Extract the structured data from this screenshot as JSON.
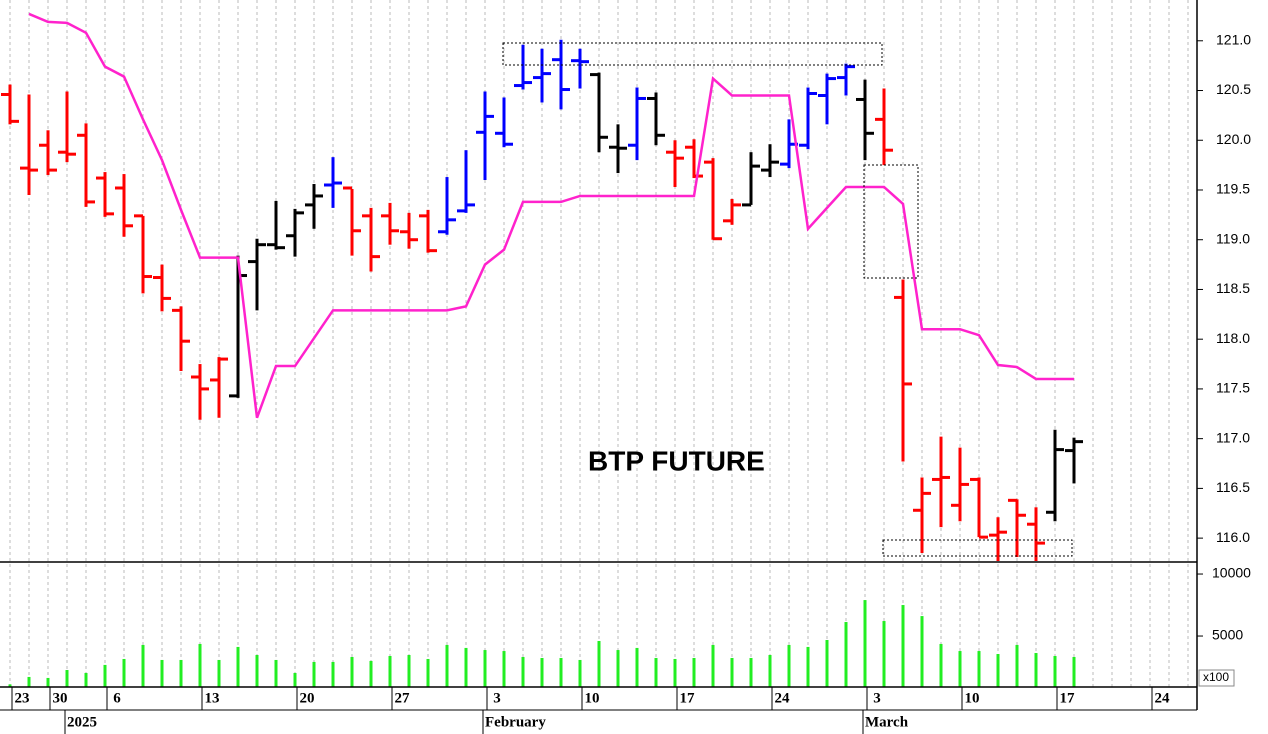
{
  "chart_data": [
    {
      "type": "ohlc",
      "annotation": "BTP FUTURE",
      "ylim": [
        115.76,
        121.41
      ],
      "yticks": [
        {
          "value": 116,
          "label": "116.0"
        },
        116.5,
        {
          "value": 117,
          "label": "117.0"
        },
        117.5,
        {
          "value": 118,
          "label": "118.0"
        },
        118.5,
        {
          "value": 119,
          "label": "119.0"
        },
        119.5,
        {
          "value": 120,
          "label": "120.0"
        },
        120.5,
        {
          "value": 121,
          "label": "121.0"
        }
      ],
      "open": [
        120.46,
        119.72,
        119.95,
        119.88,
        120.05,
        119.62,
        119.52,
        119.24,
        118.62,
        118.29,
        117.62,
        117.59,
        117.43,
        118.78,
        118.95,
        119.04,
        119.35,
        119.55,
        119.52,
        119.24,
        119.24,
        119.08,
        119.24,
        119.08,
        119.29,
        120.08,
        120.07,
        120.55,
        120.63,
        120.81,
        120.8,
        120.66,
        119.93,
        119.95,
        120.42,
        119.88,
        119.93,
        119.78,
        119.19,
        119.35,
        119.7,
        119.76,
        119.95,
        120.45,
        120.63,
        120.41,
        120.21,
        118.42,
        116.28,
        116.59,
        116.33,
        116.59,
        116.03,
        116.38,
        116.14,
        116.26,
        116.88,
        null,
        null,
        null,
        null,
        null,
        null
      ],
      "high": [
        120.56,
        120.46,
        120.1,
        120.49,
        120.17,
        119.68,
        119.66,
        119.24,
        118.75,
        118.33,
        117.75,
        117.82,
        118.84,
        119.01,
        119.39,
        119.31,
        119.56,
        119.83,
        119.51,
        119.32,
        119.37,
        119.27,
        119.3,
        119.63,
        119.9,
        120.49,
        120.43,
        120.96,
        120.92,
        121.01,
        120.92,
        120.68,
        120.16,
        120.53,
        120.48,
        120.0,
        120.01,
        119.82,
        119.41,
        119.88,
        119.96,
        120.21,
        120.53,
        120.67,
        120.77,
        120.61,
        120.52,
        118.6,
        116.61,
        117.02,
        116.91,
        116.61,
        116.21,
        116.39,
        116.31,
        117.09,
        117.01,
        null,
        null,
        null,
        null,
        null,
        null
      ],
      "low": [
        120.16,
        119.45,
        119.65,
        119.78,
        119.33,
        119.23,
        119.03,
        118.46,
        118.28,
        117.68,
        117.19,
        117.21,
        117.41,
        118.29,
        118.9,
        118.83,
        119.11,
        119.32,
        118.84,
        118.68,
        118.95,
        118.91,
        118.87,
        119.05,
        119.27,
        119.6,
        119.93,
        120.51,
        120.38,
        120.31,
        120.52,
        119.88,
        119.67,
        119.8,
        119.95,
        119.53,
        119.62,
        119.0,
        119.15,
        119.35,
        119.63,
        119.72,
        119.91,
        120.16,
        120.45,
        119.8,
        119.75,
        116.77,
        115.85,
        116.11,
        116.17,
        116.01,
        115.77,
        115.81,
        115.77,
        116.17,
        116.55,
        null,
        null,
        null,
        null,
        null,
        null
      ],
      "close": [
        120.19,
        119.7,
        119.7,
        119.86,
        119.38,
        119.26,
        119.14,
        118.63,
        118.41,
        117.98,
        117.5,
        117.8,
        118.64,
        118.95,
        118.92,
        119.27,
        119.44,
        119.57,
        119.09,
        118.83,
        119.09,
        119.0,
        118.89,
        119.2,
        119.35,
        120.24,
        119.96,
        120.58,
        120.67,
        120.51,
        120.79,
        120.03,
        119.92,
        120.42,
        120.05,
        119.82,
        119.64,
        119.01,
        119.35,
        119.74,
        119.78,
        119.96,
        120.47,
        120.62,
        120.74,
        120.07,
        119.9,
        117.55,
        116.45,
        116.61,
        116.54,
        116.01,
        116.06,
        116.23,
        115.95,
        116.89,
        116.97,
        null,
        null,
        null,
        null,
        null,
        null
      ],
      "bar_colors": [
        "red",
        "red",
        "red",
        "red",
        "red",
        "red",
        "red",
        "red",
        "red",
        "red",
        "red",
        "red",
        "black",
        "black",
        "black",
        "black",
        "black",
        "blue",
        "red",
        "red",
        "red",
        "red",
        "red",
        "blue",
        "blue",
        "blue",
        "blue",
        "blue",
        "blue",
        "blue",
        "blue",
        "black",
        "black",
        "blue",
        "black",
        "red",
        "red",
        "red",
        "red",
        "black",
        "black",
        "blue",
        "blue",
        "blue",
        "blue",
        "black",
        "red",
        "red",
        "red",
        "red",
        "red",
        "red",
        "red",
        "red",
        "red",
        "black",
        "black",
        null,
        null,
        null,
        null,
        null,
        null
      ],
      "stop_line": {
        "color": "#ff22cc",
        "values": [
          null,
          121.27,
          121.19,
          121.18,
          121.08,
          120.74,
          120.64,
          120.21,
          119.8,
          119.3,
          118.82,
          118.82,
          118.82,
          117.21,
          117.73,
          117.73,
          118.01,
          118.29,
          118.29,
          118.29,
          118.29,
          118.29,
          118.29,
          118.29,
          118.33,
          118.75,
          118.9,
          119.38,
          119.38,
          119.38,
          119.44,
          119.44,
          119.44,
          119.44,
          119.44,
          119.44,
          119.44,
          120.62,
          120.45,
          120.45,
          120.45,
          120.45,
          119.11,
          119.32,
          119.53,
          119.53,
          119.53,
          119.36,
          118.1,
          118.1,
          118.1,
          118.04,
          117.74,
          117.72,
          117.6,
          117.6,
          117.6,
          null,
          null,
          null,
          null,
          null,
          null
        ]
      }
    },
    {
      "type": "bar",
      "color": "#22ee22",
      "unit_label": "x100",
      "ylim": [
        890,
        10970
      ],
      "yticks": [
        10000,
        5000
      ],
      "categories": [
        "23",
        null,
        "30",
        null,
        null,
        "6",
        null,
        null,
        null,
        null,
        "13",
        null,
        null,
        null,
        null,
        "20",
        null,
        null,
        null,
        null,
        "27",
        null,
        null,
        null,
        null,
        "3",
        null,
        null,
        null,
        null,
        "10",
        null,
        null,
        null,
        null,
        "17",
        null,
        null,
        null,
        null,
        "24",
        null,
        null,
        null,
        null,
        "3",
        null,
        null,
        null,
        null,
        "10",
        null,
        null,
        null,
        null,
        "17",
        null,
        null,
        null,
        null,
        "24",
        null,
        null
      ],
      "months": [
        null,
        null,
        null,
        "2025",
        null,
        null,
        null,
        null,
        null,
        null,
        null,
        null,
        null,
        null,
        null,
        null,
        null,
        null,
        null,
        null,
        null,
        null,
        null,
        null,
        null,
        "February",
        null,
        null,
        null,
        null,
        null,
        null,
        null,
        null,
        null,
        null,
        null,
        null,
        null,
        null,
        null,
        null,
        null,
        null,
        null,
        "March",
        null,
        null,
        null,
        null,
        null,
        null,
        null,
        null,
        null,
        null,
        null,
        null,
        null,
        null,
        null,
        null,
        null
      ],
      "values": [
        1100,
        1700,
        1620,
        2260,
        2020,
        2670,
        3150,
        4280,
        3070,
        3070,
        4360,
        3070,
        4120,
        3470,
        3070,
        2020,
        2910,
        2910,
        3310,
        2990,
        3390,
        3470,
        3150,
        4280,
        4040,
        3870,
        3790,
        3310,
        3230,
        3230,
        3070,
        4600,
        3870,
        4040,
        3230,
        3150,
        3230,
        4280,
        3230,
        3230,
        3470,
        4280,
        4120,
        4680,
        6130,
        7900,
        6210,
        7500,
        6610,
        4360,
        3790,
        3790,
        3550,
        4280,
        3630,
        3390,
        3310,
        null,
        null,
        null,
        null,
        null,
        null
      ]
    }
  ]
}
